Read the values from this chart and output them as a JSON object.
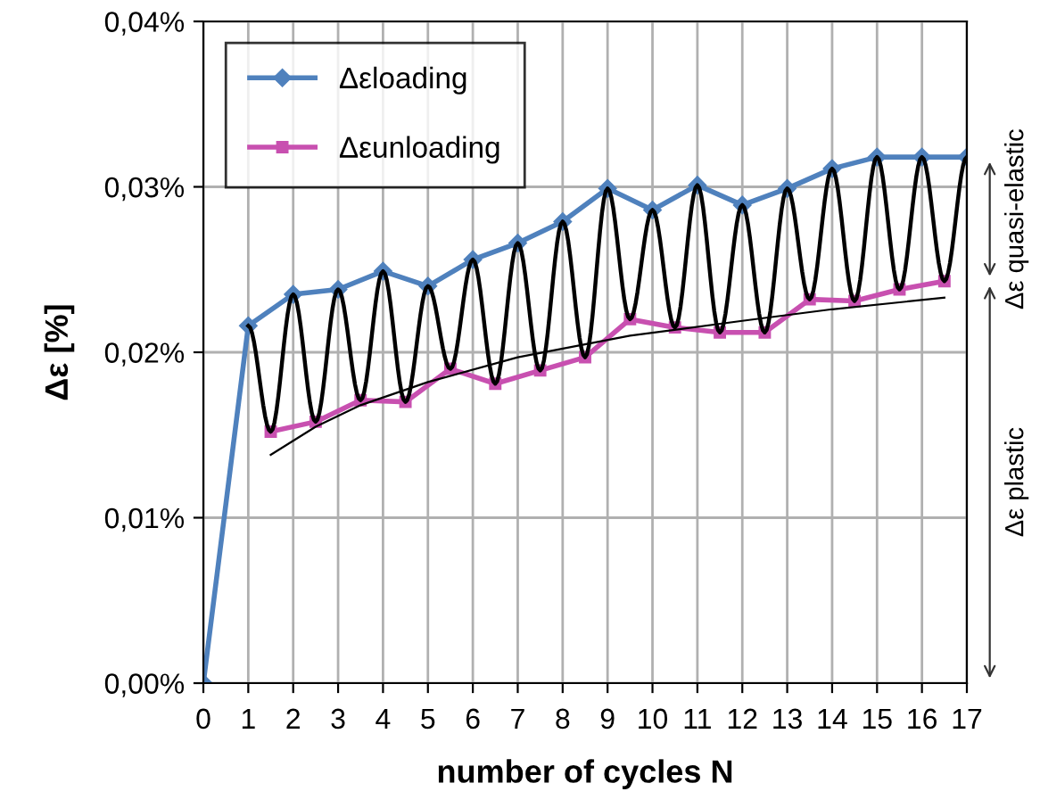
{
  "chart_data": {
    "type": "line",
    "xlabel": "number of cycles N",
    "ylabel": "Δε [%]",
    "xlim": [
      0,
      17
    ],
    "xticks": [
      0,
      1,
      2,
      3,
      4,
      5,
      6,
      7,
      8,
      9,
      10,
      11,
      12,
      13,
      14,
      15,
      16,
      17
    ],
    "ylim": [
      0,
      0.04
    ],
    "yticks": [
      {
        "value": 0,
        "label": "0,00%"
      },
      {
        "value": 0.01,
        "label": "0,01%"
      },
      {
        "value": 0.02,
        "label": "0,02%"
      },
      {
        "value": 0.03,
        "label": "0,03%"
      },
      {
        "value": 0.04,
        "label": "0,04%"
      }
    ],
    "grid": true,
    "legend": "top left",
    "series": [
      {
        "name": "Δεloading",
        "color": "#4f81bd",
        "marker": "diamond",
        "x": [
          0,
          1,
          2,
          3,
          4,
          5,
          6,
          7,
          8,
          9,
          10,
          11,
          12,
          13,
          14,
          15,
          16,
          17
        ],
        "values": [
          0,
          0.0216,
          0.0235,
          0.0238,
          0.0249,
          0.024,
          0.0256,
          0.0266,
          0.0279,
          0.0299,
          0.0286,
          0.0301,
          0.0289,
          0.0299,
          0.0311,
          0.0318,
          0.0318,
          0.0318
        ]
      },
      {
        "name": "Δεunloading",
        "color": "#c850b0",
        "marker": "square",
        "x": [
          1.5,
          2.5,
          3.5,
          4.5,
          5.5,
          6.5,
          7.5,
          8.5,
          9.5,
          10.5,
          11.5,
          12.5,
          13.5,
          14.5,
          15.5,
          16.5
        ],
        "values": [
          0.0152,
          0.0158,
          0.0171,
          0.017,
          0.019,
          0.0181,
          0.0189,
          0.0197,
          0.022,
          0.0215,
          0.0212,
          0.0212,
          0.0232,
          0.0231,
          0.0238,
          0.0243
        ]
      },
      {
        "color": "#000000",
        "marker": "none",
        "x": [
          1,
          1.5,
          2,
          2.5,
          3,
          3.5,
          4,
          4.5,
          5,
          5.5,
          6,
          6.5,
          7,
          7.5,
          8,
          8.5,
          9,
          9.5,
          10,
          10.5,
          11,
          11.5,
          12,
          12.5,
          13,
          13.5,
          14,
          14.5,
          15,
          15.5,
          16,
          16.5,
          17
        ],
        "values": [
          0.0216,
          0.0152,
          0.0235,
          0.0158,
          0.0238,
          0.0171,
          0.0249,
          0.017,
          0.024,
          0.019,
          0.0256,
          0.0181,
          0.0266,
          0.0189,
          0.0279,
          0.0197,
          0.0299,
          0.022,
          0.0286,
          0.0215,
          0.0301,
          0.0212,
          0.0289,
          0.0212,
          0.0299,
          0.0232,
          0.0311,
          0.0231,
          0.0318,
          0.0238,
          0.0318,
          0.0243,
          0.0318
        ]
      },
      {
        "color": "#000000",
        "marker": "none",
        "x": [
          1.5,
          2.5,
          3.5,
          5,
          7,
          9.5,
          12,
          14,
          16.5
        ],
        "values": [
          0.0138,
          0.0155,
          0.0168,
          0.0182,
          0.0197,
          0.021,
          0.0219,
          0.0226,
          0.0233
        ]
      }
    ],
    "annotations": [
      "Δε quasi-elastic",
      "Δε plastic"
    ]
  }
}
